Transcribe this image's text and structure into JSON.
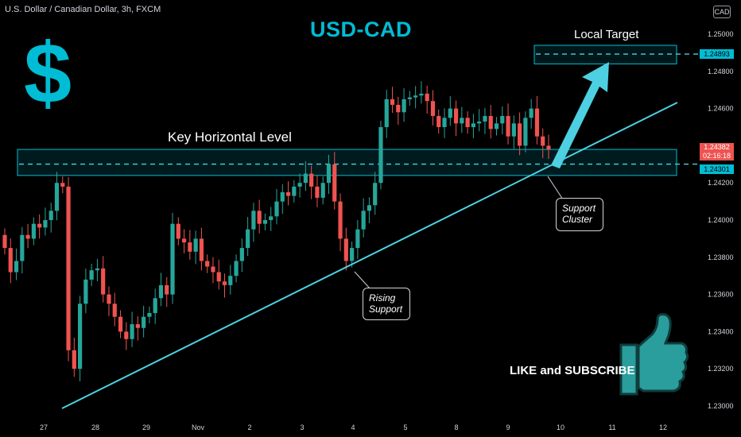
{
  "header": {
    "symbol_line": "U.S. Dollar / Canadian Dollar, 3h, FXCM",
    "currency_badge": "CAD"
  },
  "annotations": {
    "title": "USD-CAD",
    "key_level": "Key Horizontal Level",
    "local_target": "Local Target",
    "rising_support": [
      "Rising",
      "Support"
    ],
    "support_cluster": [
      "Support",
      "Cluster"
    ],
    "like_subscribe": "LIKE and SUBSCRIBE"
  },
  "price_tags": {
    "current_price": "1.24382",
    "countdown": "02:16:18",
    "support_level": "1.24301",
    "target_level": "1.24893"
  },
  "colors": {
    "up": "#26a69a",
    "down": "#ef5350",
    "accent": "#00bcd4",
    "line": "#4dd0e1",
    "background": "#000000"
  },
  "chart_data": {
    "type": "candlestick",
    "title": "USD-CAD",
    "ylim": [
      1.2295,
      1.251
    ],
    "y_ticks": [
      "1.25000",
      "1.24800",
      "1.24600",
      "1.24400",
      "1.24200",
      "1.24000",
      "1.23800",
      "1.23600",
      "1.23400",
      "1.23200",
      "1.23000"
    ],
    "x_ticks": [
      "27",
      "28",
      "29",
      "Nov",
      "2",
      "3",
      "4",
      "5",
      "8",
      "9",
      "10",
      "11",
      "12"
    ],
    "levels": {
      "key_support": 1.24301,
      "target": 1.24893,
      "current": 1.24382
    },
    "closes": [
      1.2385,
      1.2372,
      1.2378,
      1.2392,
      1.239,
      1.2398,
      1.2396,
      1.24,
      1.2405,
      1.242,
      1.2418,
      1.233,
      1.232,
      1.2355,
      1.2368,
      1.2373,
      1.2374,
      1.236,
      1.2355,
      1.2348,
      1.234,
      1.2336,
      1.2344,
      1.2342,
      1.2348,
      1.235,
      1.2358,
      1.2365,
      1.236,
      1.2398,
      1.239,
      1.2388,
      1.2383,
      1.239,
      1.2378,
      1.2375,
      1.2372,
      1.2367,
      1.2365,
      1.237,
      1.2378,
      1.2385,
      1.2395,
      1.2405,
      1.2398,
      1.24,
      1.2402,
      1.241,
      1.2415,
      1.2413,
      1.2418,
      1.242,
      1.2425,
      1.2418,
      1.2412,
      1.242,
      1.243,
      1.241,
      1.239,
      1.2378,
      1.2385,
      1.2395,
      1.2405,
      1.2408,
      1.242,
      1.245,
      1.2465,
      1.2462,
      1.2458,
      1.2465,
      1.2466,
      1.2467,
      1.2468,
      1.2464,
      1.2456,
      1.245,
      1.2455,
      1.246,
      1.2452,
      1.2455,
      1.245,
      1.2452,
      1.2453,
      1.2456,
      1.2449,
      1.2452,
      1.2456,
      1.2445,
      1.2452,
      1.244,
      1.2455,
      1.246,
      1.2445,
      1.244,
      1.2438
    ]
  }
}
